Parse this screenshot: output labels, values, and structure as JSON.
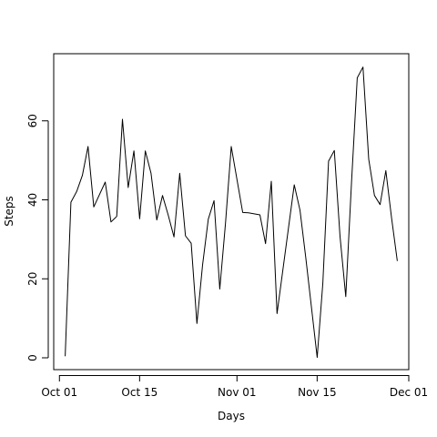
{
  "chart_data": {
    "type": "line",
    "title": "",
    "xlabel": "Days",
    "ylabel": "Steps",
    "xlim": [
      "2012-09-30",
      "2012-12-01"
    ],
    "ylim": [
      -3,
      77
    ],
    "grid": false,
    "x_ticks": [
      {
        "date": "2012-10-01",
        "label": "Oct 01"
      },
      {
        "date": "2012-10-15",
        "label": "Oct 15"
      },
      {
        "date": "2012-11-01",
        "label": "Nov 01"
      },
      {
        "date": "2012-11-15",
        "label": "Nov 15"
      },
      {
        "date": "2012-12-01",
        "label": "Dec 01"
      }
    ],
    "y_ticks": [
      0,
      20,
      40,
      60
    ],
    "series": [
      {
        "color": "#000000",
        "x": [
          "2012-10-02",
          "2012-10-03",
          "2012-10-04",
          "2012-10-05",
          "2012-10-06",
          "2012-10-07",
          "2012-10-09",
          "2012-10-10",
          "2012-10-11",
          "2012-10-12",
          "2012-10-13",
          "2012-10-14",
          "2012-10-15",
          "2012-10-16",
          "2012-10-17",
          "2012-10-18",
          "2012-10-19",
          "2012-10-20",
          "2012-10-21",
          "2012-10-22",
          "2012-10-23",
          "2012-10-24",
          "2012-10-25",
          "2012-10-26",
          "2012-10-27",
          "2012-10-28",
          "2012-10-29",
          "2012-10-30",
          "2012-10-31",
          "2012-11-02",
          "2012-11-03",
          "2012-11-05",
          "2012-11-06",
          "2012-11-07",
          "2012-11-08",
          "2012-11-11",
          "2012-11-12",
          "2012-11-13",
          "2012-11-15",
          "2012-11-16",
          "2012-11-17",
          "2012-11-18",
          "2012-11-19",
          "2012-11-20",
          "2012-11-21",
          "2012-11-22",
          "2012-11-23",
          "2012-11-24",
          "2012-11-25",
          "2012-11-26",
          "2012-11-27",
          "2012-11-28",
          "2012-11-29"
        ],
        "values": [
          0.4,
          39.4,
          42.1,
          46.2,
          53.5,
          38.2,
          44.5,
          34.4,
          35.8,
          60.4,
          43.1,
          52.4,
          35.2,
          52.4,
          46.7,
          34.9,
          41.1,
          36.1,
          30.6,
          46.7,
          30.9,
          29.0,
          8.7,
          23.5,
          35.1,
          39.8,
          17.4,
          34.1,
          53.5,
          36.8,
          36.7,
          36.2,
          28.9,
          44.7,
          11.2,
          43.8,
          37.4,
          25.5,
          0.1,
          18.9,
          49.8,
          52.5,
          30.7,
          15.5,
          44.4,
          70.9,
          73.6,
          50.3,
          41.1,
          38.8,
          47.4,
          35.4,
          24.5
        ]
      }
    ]
  }
}
